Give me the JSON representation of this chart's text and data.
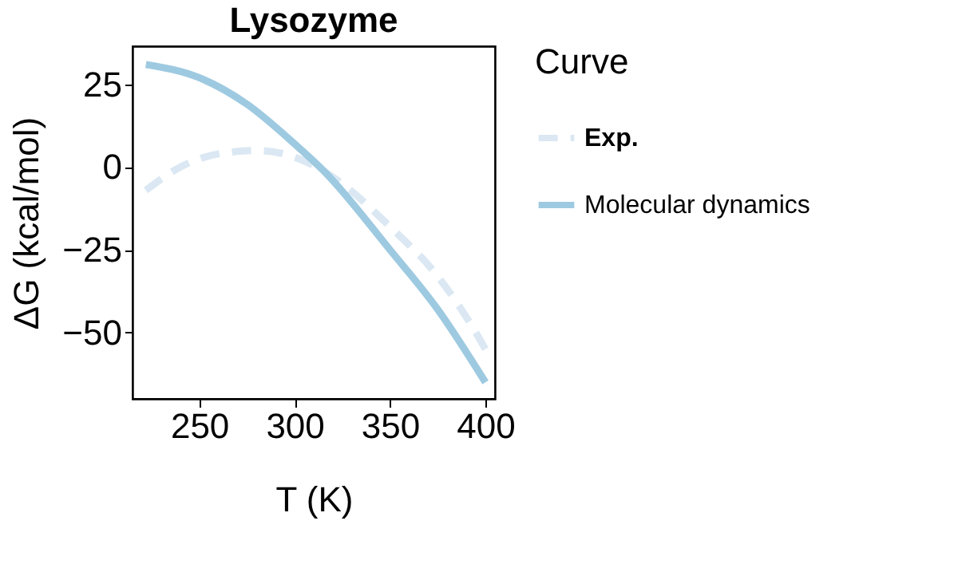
{
  "chart_data": {
    "type": "line",
    "title": "Lysozyme",
    "xlabel": "T (K)",
    "ylabel": "ΔG (kcal/mol)",
    "legend_title": "Curve",
    "legend": "right",
    "xlim": [
      215,
      405
    ],
    "ylim": [
      -70,
      36.5
    ],
    "xticks": [
      250,
      300,
      350,
      400
    ],
    "yticks": [
      -50,
      -25,
      0,
      25
    ],
    "grid": false,
    "series": [
      {
        "name": "Exp.",
        "color": "#dbe8f3",
        "line_style": "dashed",
        "x": [
          222,
          240,
          260,
          280,
          300,
          320,
          350,
          375,
          395,
          400
        ],
        "values": [
          -7,
          0,
          4,
          5,
          3,
          -3,
          -18,
          -33,
          -50,
          -55
        ]
      },
      {
        "name": "Molecular dynamics",
        "color": "#9ecae1",
        "line_style": "solid",
        "x": [
          222,
          250,
          275,
          300,
          315,
          350,
          375,
          400
        ],
        "values": [
          31,
          27,
          19,
          7,
          -1,
          -25,
          -43,
          -65
        ]
      }
    ]
  }
}
